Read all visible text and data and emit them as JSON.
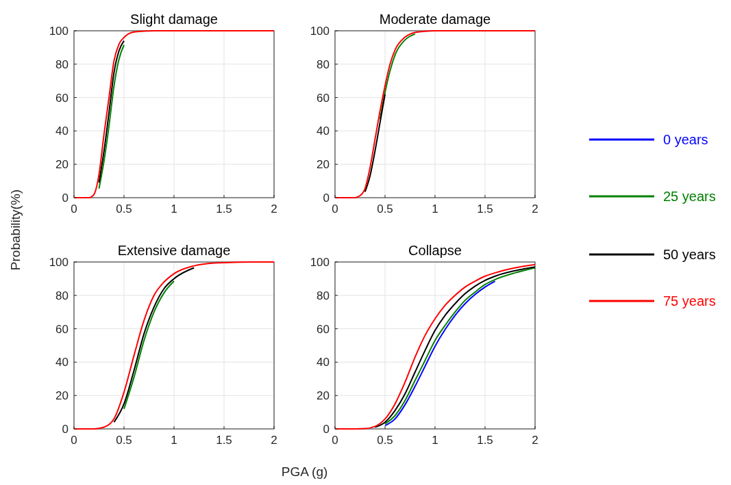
{
  "chart_data": [
    {
      "type": "line",
      "title": "Slight damage",
      "ylabel": "Probability(%)",
      "xlim": [
        0,
        2
      ],
      "ylim": [
        0,
        100
      ],
      "xticks": [
        0,
        0.5,
        1,
        1.5,
        2
      ],
      "yticks": [
        0,
        20,
        40,
        60,
        80,
        100
      ],
      "grid": true,
      "x": [
        0,
        0.1,
        0.15,
        0.2,
        0.25,
        0.3,
        0.35,
        0.4,
        0.45,
        0.5,
        0.6,
        0.7,
        0.8,
        1,
        1.5,
        2
      ],
      "series": [
        {
          "color": "#0000ff",
          "values": [
            null,
            null,
            null,
            null,
            null,
            null,
            null,
            null,
            null,
            null,
            null,
            null,
            null,
            null,
            null,
            null
          ]
        },
        {
          "color": "#008000",
          "values": [
            null,
            null,
            null,
            null,
            5.5,
            22,
            43,
            67,
            83,
            91.5,
            null,
            null,
            null,
            null,
            null,
            null
          ]
        },
        {
          "color": "#000000",
          "values": [
            null,
            null,
            null,
            null,
            9,
            28,
            51,
            75,
            88,
            94,
            null,
            null,
            null,
            null,
            null,
            null
          ]
        },
        {
          "color": "#ff0000",
          "values": [
            0,
            0,
            0,
            2,
            14,
            38,
            60,
            82,
            92,
            96,
            99.3,
            99.8,
            100,
            100,
            100,
            100
          ]
        }
      ]
    },
    {
      "type": "line",
      "title": "Moderate damage",
      "xlim": [
        0,
        2
      ],
      "ylim": [
        0,
        100
      ],
      "xticks": [
        0,
        0.5,
        1,
        1.5,
        2
      ],
      "yticks": [
        0,
        20,
        40,
        60,
        80,
        100
      ],
      "grid": true,
      "legend": "right",
      "x": [
        0,
        0.1,
        0.2,
        0.25,
        0.3,
        0.35,
        0.4,
        0.45,
        0.5,
        0.55,
        0.6,
        0.7,
        0.8,
        0.9,
        1,
        1.5,
        2
      ],
      "series": [
        {
          "name": "0 years",
          "color": "#0000ff",
          "values": [
            null,
            null,
            null,
            null,
            null,
            null,
            null,
            null,
            null,
            null,
            null,
            null,
            null,
            null,
            null,
            null,
            null
          ]
        },
        {
          "name": "25 years",
          "color": "#008000",
          "values": [
            null,
            null,
            null,
            null,
            null,
            null,
            null,
            47,
            63,
            76,
            85.5,
            94.5,
            98,
            null,
            null,
            null,
            null
          ]
        },
        {
          "name": "50 years",
          "color": "#000000",
          "values": [
            null,
            null,
            null,
            null,
            3.5,
            13,
            28,
            45,
            62,
            null,
            null,
            null,
            null,
            null,
            null,
            null,
            null
          ]
        },
        {
          "name": "75 years",
          "color": "#ff0000",
          "values": [
            0,
            0,
            0,
            1.2,
            5.5,
            18,
            35,
            52,
            67,
            80,
            88.5,
            96.2,
            99,
            99.7,
            100,
            100,
            100
          ]
        }
      ]
    },
    {
      "type": "line",
      "title": "Extensive damage",
      "xlabel": "PGA (g)",
      "xlim": [
        0,
        2
      ],
      "ylim": [
        0,
        100
      ],
      "xticks": [
        0,
        0.5,
        1,
        1.5,
        2
      ],
      "yticks": [
        0,
        20,
        40,
        60,
        80,
        100
      ],
      "grid": true,
      "x": [
        0,
        0.2,
        0.3,
        0.4,
        0.5,
        0.6,
        0.7,
        0.8,
        0.9,
        1,
        1.2,
        1.4,
        1.6,
        1.8,
        2
      ],
      "series": [
        {
          "color": "#0000ff",
          "values": [
            null,
            null,
            null,
            null,
            null,
            null,
            null,
            null,
            null,
            null,
            null,
            null,
            null,
            null,
            null
          ]
        },
        {
          "color": "#008000",
          "values": [
            null,
            null,
            null,
            null,
            12,
            31,
            53,
            70,
            81.5,
            88.5,
            null,
            null,
            null,
            null,
            null
          ]
        },
        {
          "color": "#000000",
          "values": [
            null,
            null,
            null,
            4,
            15,
            35,
            57,
            73,
            84,
            90,
            96.5,
            null,
            null,
            null,
            null
          ]
        },
        {
          "color": "#ff0000",
          "values": [
            0,
            0,
            1,
            6,
            22,
            44,
            65,
            80,
            88,
            93,
            97.7,
            99.4,
            99.8,
            100,
            100
          ]
        }
      ]
    },
    {
      "type": "line",
      "title": "Collapse",
      "xlim": [
        0,
        2
      ],
      "ylim": [
        0,
        100
      ],
      "xticks": [
        0,
        0.5,
        1,
        1.5,
        2
      ],
      "yticks": [
        0,
        20,
        40,
        60,
        80,
        100
      ],
      "grid": true,
      "x": [
        0,
        0.2,
        0.3,
        0.4,
        0.5,
        0.6,
        0.7,
        0.8,
        0.9,
        1,
        1.1,
        1.2,
        1.3,
        1.4,
        1.5,
        1.6,
        1.8,
        2
      ],
      "series": [
        {
          "color": "#0000ff",
          "values": [
            null,
            null,
            null,
            null,
            2,
            6,
            14.5,
            25.5,
            37.5,
            49.5,
            59.5,
            68,
            75,
            80.5,
            85,
            88.5,
            null,
            null
          ]
        },
        {
          "color": "#008000",
          "values": [
            null,
            null,
            null,
            null,
            3,
            8,
            17,
            29,
            41,
            53,
            62,
            70,
            77,
            82,
            86.5,
            89.5,
            93.5,
            96.5
          ]
        },
        {
          "color": "#000000",
          "values": [
            null,
            null,
            null,
            1,
            4,
            11,
            21,
            34,
            47,
            59,
            68,
            75,
            81,
            85.5,
            89,
            91.5,
            94.8,
            97
          ]
        },
        {
          "color": "#ff0000",
          "values": [
            0,
            0,
            0.2,
            1.5,
            6,
            15,
            28,
            43,
            56,
            66,
            74,
            80,
            85,
            88.5,
            91.5,
            93.5,
            96.5,
            98.5
          ]
        }
      ]
    }
  ]
}
